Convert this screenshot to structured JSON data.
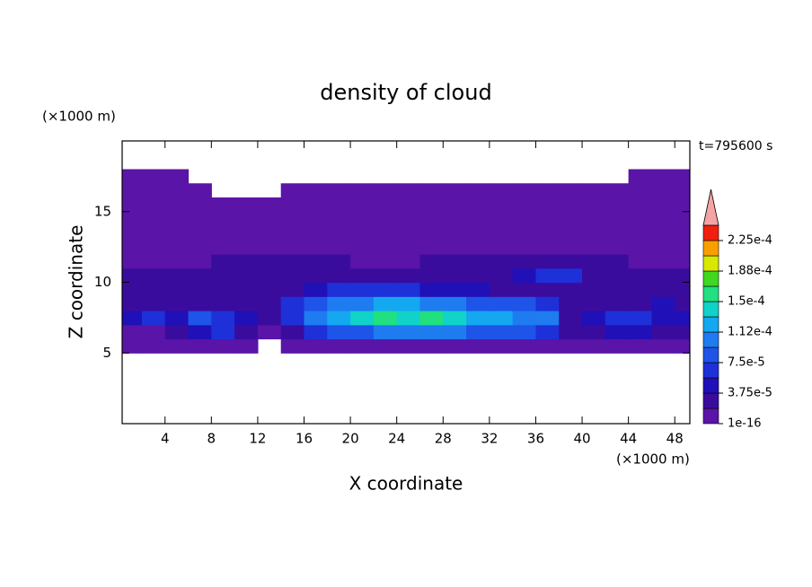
{
  "chart_data": {
    "type": "contour",
    "title": "density of cloud",
    "x_label": "X coordinate",
    "y_label": "Z coordinate",
    "x_unit": "(×1000 m)",
    "y_unit": "(×1000 m)",
    "time_label": "t=795600 s",
    "xlim": [
      0.3,
      49.3
    ],
    "ylim": [
      0,
      20
    ],
    "xticks": [
      4,
      8,
      12,
      16,
      20,
      24,
      28,
      32,
      36,
      40,
      44,
      48
    ],
    "yticks": [
      5,
      10,
      15
    ],
    "x": [
      1,
      3,
      5,
      7,
      9,
      11,
      13,
      15,
      17,
      19,
      21,
      23,
      25,
      27,
      29,
      31,
      33,
      35,
      37,
      39,
      41,
      43,
      45,
      47,
      49
    ],
    "z": [
      5.5,
      6.5,
      7.5,
      8.5,
      9.5,
      10.5,
      11.5,
      12.5,
      13.5,
      14.5,
      15.5,
      16.5,
      17.5
    ],
    "values": [
      [
        1e-16,
        1e-16,
        1e-16,
        1e-16,
        1e-16,
        1e-16,
        null,
        1e-16,
        1e-16,
        1e-16,
        1e-16,
        1e-16,
        1e-16,
        1e-16,
        1e-16,
        1e-16,
        1e-16,
        1e-16,
        1e-16,
        1e-16,
        1e-16,
        1e-16,
        1e-16,
        1e-16,
        1e-16
      ],
      [
        1e-16,
        1e-16,
        2e-05,
        4e-05,
        6e-05,
        2e-05,
        1e-16,
        2e-05,
        6e-05,
        8e-05,
        8e-05,
        0.0001,
        0.0001,
        0.0001,
        0.0001,
        8e-05,
        8e-05,
        8e-05,
        6e-05,
        2e-05,
        2e-05,
        4e-05,
        4e-05,
        2e-05,
        2e-05
      ],
      [
        4e-05,
        6e-05,
        4e-05,
        8e-05,
        6e-05,
        4e-05,
        2e-05,
        6e-05,
        0.0001,
        0.00012,
        0.00014,
        0.00016,
        0.00014,
        0.00016,
        0.00014,
        0.00012,
        0.00012,
        0.0001,
        0.0001,
        2e-05,
        4e-05,
        6e-05,
        6e-05,
        4e-05,
        4e-05
      ],
      [
        2e-05,
        2e-05,
        2e-05,
        2e-05,
        2e-05,
        2e-05,
        2e-05,
        6e-05,
        8e-05,
        0.0001,
        0.0001,
        0.00012,
        0.00012,
        0.0001,
        0.0001,
        8e-05,
        8e-05,
        8e-05,
        6e-05,
        2e-05,
        2e-05,
        2e-05,
        2e-05,
        4e-05,
        2e-05
      ],
      [
        2e-05,
        2e-05,
        2e-05,
        2e-05,
        2e-05,
        2e-05,
        2e-05,
        2e-05,
        4e-05,
        6e-05,
        6e-05,
        6e-05,
        6e-05,
        4e-05,
        4e-05,
        4e-05,
        2e-05,
        2e-05,
        2e-05,
        2e-05,
        2e-05,
        2e-05,
        2e-05,
        2e-05,
        2e-05
      ],
      [
        2e-05,
        2e-05,
        2e-05,
        2e-05,
        2e-05,
        2e-05,
        2e-05,
        2e-05,
        2e-05,
        2e-05,
        2e-05,
        2e-05,
        2e-05,
        2e-05,
        2e-05,
        2e-05,
        2e-05,
        4e-05,
        6e-05,
        6e-05,
        2e-05,
        2e-05,
        2e-05,
        2e-05,
        2e-05
      ],
      [
        1e-16,
        1e-16,
        1e-16,
        1e-16,
        2e-05,
        2e-05,
        2e-05,
        2e-05,
        2e-05,
        2e-05,
        1e-16,
        1e-16,
        1e-16,
        2e-05,
        2e-05,
        2e-05,
        2e-05,
        2e-05,
        2e-05,
        2e-05,
        2e-05,
        2e-05,
        1e-16,
        1e-16,
        1e-16
      ],
      [
        1e-16,
        1e-16,
        1e-16,
        1e-16,
        1e-16,
        1e-16,
        1e-16,
        1e-16,
        1e-16,
        1e-16,
        1e-16,
        1e-16,
        1e-16,
        1e-16,
        1e-16,
        1e-16,
        1e-16,
        1e-16,
        1e-16,
        1e-16,
        1e-16,
        1e-16,
        1e-16,
        1e-16,
        1e-16
      ],
      [
        1e-16,
        1e-16,
        1e-16,
        1e-16,
        1e-16,
        1e-16,
        1e-16,
        1e-16,
        1e-16,
        1e-16,
        1e-16,
        1e-16,
        1e-16,
        1e-16,
        1e-16,
        1e-16,
        1e-16,
        1e-16,
        1e-16,
        1e-16,
        1e-16,
        1e-16,
        1e-16,
        1e-16,
        1e-16
      ],
      [
        1e-16,
        1e-16,
        1e-16,
        1e-16,
        1e-16,
        1e-16,
        1e-16,
        1e-16,
        1e-16,
        1e-16,
        1e-16,
        1e-16,
        1e-16,
        1e-16,
        1e-16,
        1e-16,
        1e-16,
        1e-16,
        1e-16,
        1e-16,
        1e-16,
        1e-16,
        1e-16,
        1e-16,
        1e-16
      ],
      [
        1e-16,
        1e-16,
        1e-16,
        1e-16,
        1e-16,
        1e-16,
        1e-16,
        1e-16,
        1e-16,
        1e-16,
        1e-16,
        1e-16,
        1e-16,
        1e-16,
        1e-16,
        1e-16,
        1e-16,
        1e-16,
        1e-16,
        1e-16,
        1e-16,
        1e-16,
        1e-16,
        1e-16,
        1e-16
      ],
      [
        1e-16,
        1e-16,
        1e-16,
        1e-16,
        null,
        null,
        null,
        1e-16,
        1e-16,
        1e-16,
        1e-16,
        1e-16,
        1e-16,
        1e-16,
        1e-16,
        1e-16,
        1e-16,
        1e-16,
        1e-16,
        1e-16,
        1e-16,
        1e-16,
        1e-16,
        1e-16,
        1e-16
      ],
      [
        1e-16,
        1e-16,
        1e-16,
        null,
        null,
        null,
        null,
        null,
        null,
        null,
        null,
        null,
        null,
        null,
        null,
        null,
        null,
        null,
        null,
        null,
        null,
        null,
        1e-16,
        1e-16,
        1e-16
      ]
    ],
    "levels": [
      1e-16,
      1.875e-05,
      3.75e-05,
      5.625e-05,
      7.5e-05,
      9.375e-05,
      0.0001125,
      0.00013125,
      0.00015,
      0.00016875,
      0.0001875,
      0.00020625,
      0.000225
    ],
    "colors": [
      "#5a14a8",
      "#3a0c9e",
      "#2010b8",
      "#1e30d8",
      "#1e54e8",
      "#1e7cf0",
      "#14a8f0",
      "#10d2c8",
      "#20e080",
      "#40d820",
      "#d8e800",
      "#f8a000",
      "#f02010"
    ],
    "over_color": "#f4a4a4",
    "colorbar_ticks": [
      {
        "value": 1e-16,
        "label": "1e-16"
      },
      {
        "value": 3.75e-05,
        "label": "3.75e-5"
      },
      {
        "value": 7.5e-05,
        "label": "7.5e-5"
      },
      {
        "value": 0.0001125,
        "label": "1.12e-4"
      },
      {
        "value": 0.00015,
        "label": "1.5e-4"
      },
      {
        "value": 0.0001875,
        "label": "1.88e-4"
      },
      {
        "value": 0.000225,
        "label": "2.25e-4"
      }
    ]
  }
}
